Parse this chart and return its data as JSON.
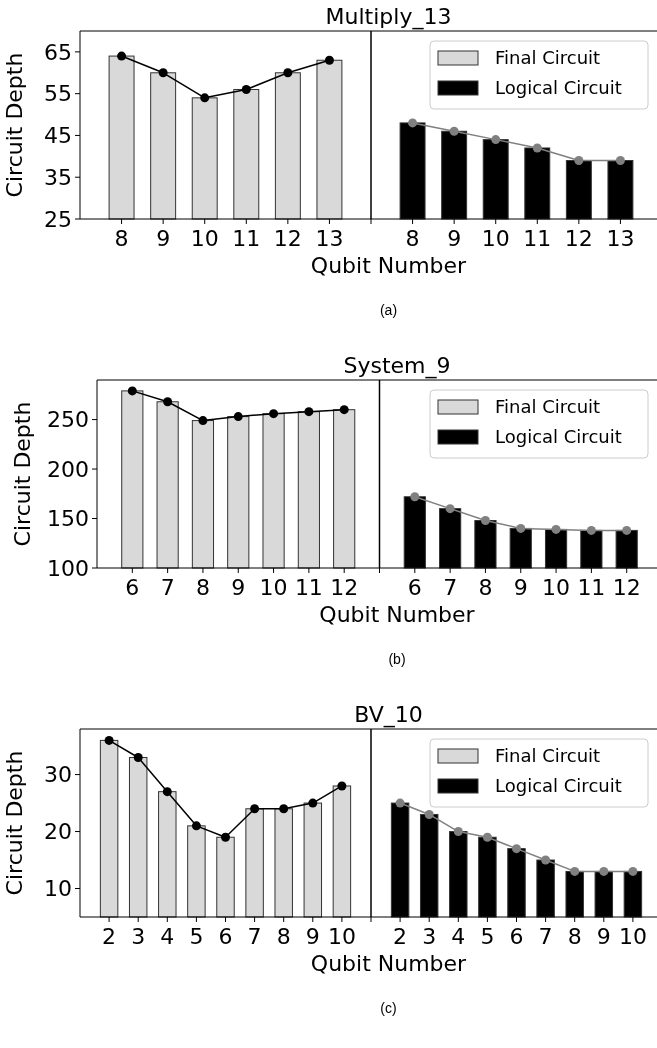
{
  "chart_data": [
    {
      "type": "bar",
      "title": "Multiply_13",
      "xlabel": "Qubit Number",
      "ylabel": "Circuit Depth",
      "categories": [
        "8",
        "9",
        "10",
        "11",
        "12",
        "13",
        null,
        "8",
        "9",
        "10",
        "11",
        "12",
        "13"
      ],
      "series": [
        {
          "name": "Final Circuit",
          "color": "#d9d9d9",
          "values": [
            64,
            60,
            54,
            56,
            60,
            63,
            null,
            null,
            null,
            null,
            null,
            null,
            null
          ]
        },
        {
          "name": "Logical Circuit",
          "color": "#000000",
          "values": [
            null,
            null,
            null,
            null,
            null,
            null,
            null,
            48,
            46,
            44,
            42,
            39,
            39
          ]
        },
        {
          "type": "line",
          "color": "#000000",
          "values": [
            64,
            60,
            54,
            56,
            60,
            63,
            null,
            null,
            null,
            null,
            null,
            null,
            null
          ]
        },
        {
          "type": "line",
          "color": "#808080",
          "values": [
            null,
            null,
            null,
            null,
            null,
            null,
            null,
            48,
            46,
            44,
            42,
            39,
            39
          ]
        }
      ],
      "ylim": [
        25,
        70
      ],
      "yticks": [
        25,
        35,
        45,
        55,
        65
      ],
      "legend": "top right",
      "marker": "circle",
      "annotations": [
        "(a)"
      ]
    },
    {
      "type": "bar",
      "title": "System_9",
      "xlabel": "Qubit Number",
      "ylabel": "Circuit Depth",
      "categories": [
        "6",
        "7",
        "8",
        "9",
        "10",
        "11",
        "12",
        null,
        "6",
        "7",
        "8",
        "9",
        "10",
        "11",
        "12"
      ],
      "series": [
        {
          "name": "Final Circuit",
          "color": "#d9d9d9",
          "values": [
            279,
            268,
            249,
            253,
            256,
            258,
            260,
            null,
            null,
            null,
            null,
            null,
            null,
            null,
            null
          ]
        },
        {
          "name": "Logical Circuit",
          "color": "#000000",
          "values": [
            null,
            null,
            null,
            null,
            null,
            null,
            null,
            null,
            172,
            160,
            148,
            140,
            139,
            138,
            138
          ]
        },
        {
          "type": "line",
          "color": "#000000",
          "values": [
            279,
            268,
            249,
            253,
            256,
            258,
            260,
            null,
            null,
            null,
            null,
            null,
            null,
            null,
            null
          ]
        },
        {
          "type": "line",
          "color": "#808080",
          "values": [
            null,
            null,
            null,
            null,
            null,
            null,
            null,
            null,
            172,
            160,
            148,
            140,
            139,
            138,
            138
          ]
        }
      ],
      "ylim": [
        100,
        290
      ],
      "yticks": [
        100,
        150,
        200,
        250
      ],
      "legend": "top right",
      "marker": "circle",
      "annotations": [
        "(b)"
      ]
    },
    {
      "type": "bar",
      "title": "BV_10",
      "xlabel": "Qubit Number",
      "ylabel": "Circuit Depth",
      "categories": [
        "2",
        "3",
        "4",
        "5",
        "6",
        "7",
        "8",
        "9",
        "10",
        null,
        "2",
        "3",
        "4",
        "5",
        "6",
        "7",
        "8",
        "9",
        "10"
      ],
      "series": [
        {
          "name": "Final Circuit",
          "color": "#d9d9d9",
          "values": [
            36,
            33,
            27,
            21,
            19,
            24,
            24,
            25,
            28,
            null,
            null,
            null,
            null,
            null,
            null,
            null,
            null,
            null,
            null
          ]
        },
        {
          "name": "Logical Circuit",
          "color": "#000000",
          "values": [
            null,
            null,
            null,
            null,
            null,
            null,
            null,
            null,
            null,
            null,
            25,
            23,
            20,
            19,
            17,
            15,
            13,
            13,
            13
          ]
        },
        {
          "type": "line",
          "color": "#000000",
          "values": [
            36,
            33,
            27,
            21,
            19,
            24,
            24,
            25,
            28,
            null,
            null,
            null,
            null,
            null,
            null,
            null,
            null,
            null,
            null
          ]
        },
        {
          "type": "line",
          "color": "#808080",
          "values": [
            null,
            null,
            null,
            null,
            null,
            null,
            null,
            null,
            null,
            null,
            25,
            23,
            20,
            19,
            17,
            15,
            13,
            13,
            13
          ]
        }
      ],
      "ylim": [
        5,
        38
      ],
      "yticks": [
        10,
        20,
        30
      ],
      "legend": "top right",
      "marker": "circle",
      "annotations": [
        "(c)"
      ]
    }
  ]
}
